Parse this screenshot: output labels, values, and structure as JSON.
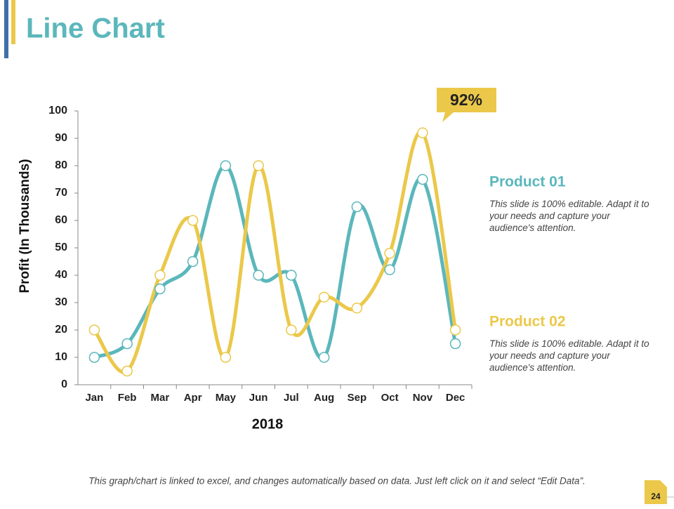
{
  "title": "Line Chart",
  "chart_data": {
    "type": "line",
    "y_label": "Profit (In Thousands)",
    "x_label": "2018",
    "categories": [
      "Jan",
      "Feb",
      "Mar",
      "Apr",
      "May",
      "Jun",
      "Jul",
      "Aug",
      "Sep",
      "Oct",
      "Nov",
      "Dec"
    ],
    "series": [
      {
        "name": "Product 01",
        "color": "#5bb7bb",
        "description": "This slide is 100% editable. Adapt it to your needs and capture your audience's attention.",
        "values": [
          10,
          15,
          35,
          45,
          80,
          40,
          40,
          10,
          65,
          42,
          75,
          15
        ]
      },
      {
        "name": "Product 02",
        "color": "#ebc84a",
        "description": "This slide is 100% editable. Adapt it to your needs and capture your audience's attention.",
        "values": [
          20,
          5,
          40,
          60,
          10,
          80,
          20,
          32,
          28,
          48,
          92,
          20
        ]
      }
    ],
    "annotations": [
      {
        "text": "92%"
      }
    ],
    "ylim": [
      0,
      100
    ],
    "yticks": [
      0,
      10,
      20,
      30,
      40,
      50,
      60,
      70,
      80,
      90,
      100
    ],
    "grid": false
  },
  "footer": "This graph/chart is linked to excel, and changes automatically based on data. Just left click on it and select “Edit Data”.",
  "page_number": 24
}
